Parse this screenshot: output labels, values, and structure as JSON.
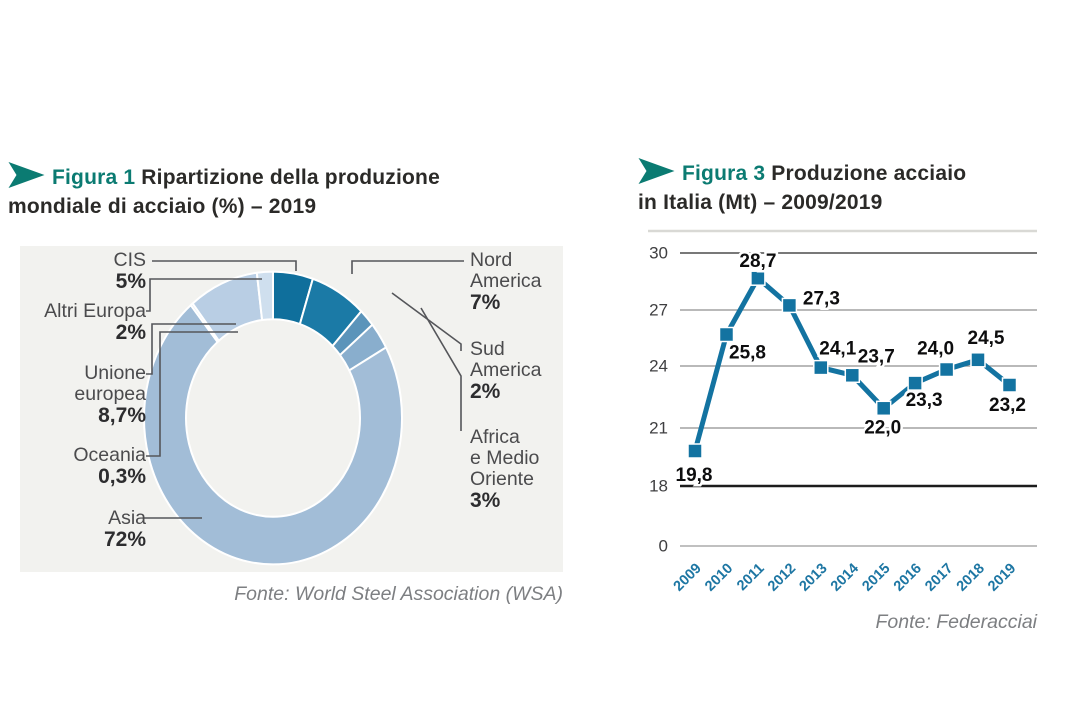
{
  "left_figure": {
    "kicker": "Figura 1",
    "title_line1": "Ripartizione della produzione",
    "title_line2": "mondiale di acciaio (%) – 2019",
    "fonte": "Fonte: World Steel Association (WSA)",
    "labels_left": [
      {
        "line1": "CIS",
        "value": "5%"
      },
      {
        "line1": "Altri Europa",
        "value": "2%"
      },
      {
        "line1": "Unione",
        "line2": "europea",
        "value": "8,7%"
      },
      {
        "line1": "Oceania",
        "value": "0,3%"
      },
      {
        "line1": "Asia",
        "value": "72%"
      }
    ],
    "labels_right": [
      {
        "line1": "Nord",
        "line2": "America",
        "value": "7%"
      },
      {
        "line1": "Sud",
        "line2": "America",
        "value": "2%"
      },
      {
        "line1": "Africa",
        "line2": "e Medio",
        "line3": "Oriente",
        "value": "3%"
      }
    ]
  },
  "right_figure": {
    "kicker": "Figura 3",
    "title_line1": "Produzione acciaio",
    "title_line2": "in Italia (Mt) – 2009/2019",
    "fonte": "Fonte: Federacciai"
  },
  "colors": {
    "accent_teal": "#0b7b72",
    "line_blue": "#1373a1",
    "year_label": "#1d76a3",
    "panel_bg": "#f2f2ef"
  },
  "chart_data": [
    {
      "type": "pie",
      "subtype": "donut",
      "title": "Figura 1 Ripartizione della produzione mondiale di acciaio (%) – 2019",
      "categories": [
        "CIS",
        "Nord America",
        "Sud America",
        "Africa e Medio Oriente",
        "Asia",
        "Oceania",
        "Unione europea",
        "Altri Europa"
      ],
      "values": [
        5,
        7,
        2,
        3,
        72,
        0.3,
        8.7,
        2
      ],
      "value_labels": [
        "5%",
        "7%",
        "2%",
        "3%",
        "72%",
        "0,3%",
        "8,7%",
        "2%"
      ],
      "colors": [
        "#0f6f9c",
        "#1b7aa6",
        "#5b94ba",
        "#89aecd",
        "#a2bdd7",
        "#dce7f2",
        "#b9cee4",
        "#cfdfee"
      ],
      "start_angle_deg": 0,
      "clockwise": true,
      "legend_position": "callout-labels",
      "source": "Fonte: World Steel Association (WSA)"
    },
    {
      "type": "line",
      "title": "Figura 3 Produzione acciaio in Italia (Mt) – 2009/2019",
      "x": [
        "2009",
        "2010",
        "2011",
        "2012",
        "2013",
        "2014",
        "2015",
        "2016",
        "2017",
        "2018",
        "2019"
      ],
      "values": [
        19.8,
        25.8,
        28.7,
        27.3,
        24.1,
        23.7,
        22.0,
        23.3,
        24.0,
        24.5,
        23.2
      ],
      "point_labels": [
        "19,8",
        "25,8",
        "28,7",
        "27,3",
        "24,1",
        "23,7",
        "22,0",
        "23,3",
        "24,0",
        "24,5",
        "23,2"
      ],
      "yticks": [
        "30",
        "27",
        "24",
        "21",
        "18",
        "0"
      ],
      "xlabel": "",
      "ylabel": "",
      "axis_break": "between 0 and 18",
      "grid": true,
      "marker": "square",
      "line_color": "#1373a1",
      "source": "Fonte: Federacciai"
    }
  ]
}
